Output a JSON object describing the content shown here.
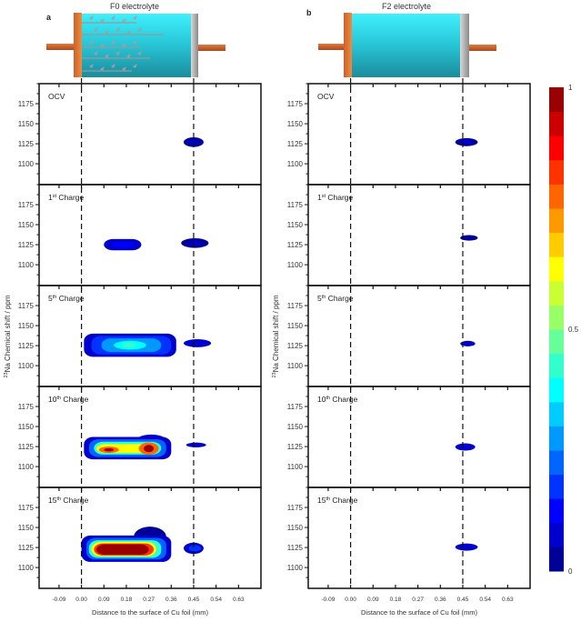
{
  "colorbar": {
    "min": 0,
    "max": 1,
    "tick_labels": [
      "0",
      "0.5",
      "1"
    ],
    "tick_values": [
      0,
      0.5,
      1
    ],
    "levels": 20
  },
  "chart_data": [
    {
      "type": "heatmap",
      "panel_letter": "a",
      "title": "F0 electrolyte",
      "xlabel": "Distance to the surface of Cu foil (mm)",
      "ylabel_sup": "23",
      "ylabel": "Na Chemical shift / ppm",
      "xlim": [
        -0.17,
        0.72
      ],
      "ylim": [
        1074,
        1200
      ],
      "xticks": [
        -0.09,
        0.0,
        0.09,
        0.18,
        0.27,
        0.36,
        0.45,
        0.54,
        0.63
      ],
      "xtick_labels": [
        "-0.09",
        "0.00",
        "0.09",
        "0.18",
        "0.27",
        "0.36",
        "0.45",
        "0.54",
        "0.63"
      ],
      "yticks": [
        1100,
        1125,
        1150,
        1175
      ],
      "ytick_labels": [
        "1100",
        "1125",
        "1150",
        "1175"
      ],
      "reference_lines_x": [
        0.0,
        0.45
      ],
      "dendrites": true,
      "subplots": [
        {
          "num": "OCV",
          "sup": "",
          "word": "",
          "contours": [
            {
              "level": 0.04,
              "x": [
                0.41,
                0.49
              ],
              "y": [
                1121,
                1133
              ]
            },
            {
              "level": 0.08,
              "x": [
                0.43,
                0.47
              ],
              "y": [
                1124,
                1130
              ]
            }
          ]
        },
        {
          "num": "1",
          "sup": "st",
          "word": " Charge",
          "contours": [
            {
              "level": 0.05,
              "x": [
                0.09,
                0.24
              ],
              "y": [
                1118,
                1132
              ]
            },
            {
              "level": 0.1,
              "x": [
                0.12,
                0.21
              ],
              "y": [
                1121,
                1129
              ]
            },
            {
              "level": 0.04,
              "x": [
                0.4,
                0.51
              ],
              "y": [
                1121,
                1133
              ]
            },
            {
              "level": 0.09,
              "x": [
                0.43,
                0.48
              ],
              "y": [
                1124,
                1130
              ]
            }
          ]
        },
        {
          "num": "5",
          "sup": "th",
          "word": " Charge",
          "contours": [
            {
              "level": 0.05,
              "x": [
                0.01,
                0.38
              ],
              "y": [
                1111,
                1140
              ]
            },
            {
              "level": 0.15,
              "x": [
                0.04,
                0.36
              ],
              "y": [
                1114,
                1137
              ]
            },
            {
              "level": 0.25,
              "x": [
                0.08,
                0.32
              ],
              "y": [
                1117,
                1134
              ]
            },
            {
              "level": 0.35,
              "x": [
                0.13,
                0.26
              ],
              "y": [
                1120,
                1131
              ]
            },
            {
              "level": 0.42,
              "x": [
                0.16,
                0.22
              ],
              "y": [
                1122,
                1129
              ]
            },
            {
              "level": 0.05,
              "x": [
                0.41,
                0.52
              ],
              "y": [
                1123,
                1133
              ]
            }
          ]
        },
        {
          "num": "10",
          "sup": "th",
          "word": " Charge",
          "contours": [
            {
              "level": 0.05,
              "x": [
                0.22,
                0.34
              ],
              "y": [
                1125,
                1140
              ]
            },
            {
              "level": 0.05,
              "x": [
                0.01,
                0.36
              ],
              "y": [
                1109,
                1137
              ]
            },
            {
              "level": 0.2,
              "x": [
                0.03,
                0.34
              ],
              "y": [
                1112,
                1134
              ]
            },
            {
              "level": 0.4,
              "x": [
                0.05,
                0.32
              ],
              "y": [
                1115,
                1131
              ]
            },
            {
              "level": 0.6,
              "x": [
                0.06,
                0.31
              ],
              "y": [
                1117,
                1128
              ]
            },
            {
              "level": 0.75,
              "x": [
                0.07,
                0.15
              ],
              "y": [
                1117,
                1125
              ]
            },
            {
              "level": 0.75,
              "x": [
                0.23,
                0.31
              ],
              "y": [
                1115,
                1130
              ]
            },
            {
              "level": 0.95,
              "x": [
                0.09,
                0.13
              ],
              "y": [
                1119,
                1123
              ]
            },
            {
              "level": 0.95,
              "x": [
                0.25,
                0.29
              ],
              "y": [
                1118,
                1127
              ]
            },
            {
              "level": 0.05,
              "x": [
                0.42,
                0.5
              ],
              "y": [
                1124,
                1130
              ]
            }
          ]
        },
        {
          "num": "15",
          "sup": "th",
          "word": " Charge",
          "contours": [
            {
              "level": 0.04,
              "x": [
                0.21,
                0.34
              ],
              "y": [
                1126,
                1151
              ]
            },
            {
              "level": 0.05,
              "x": [
                0.0,
                0.36
              ],
              "y": [
                1107,
                1140
              ]
            },
            {
              "level": 0.2,
              "x": [
                0.02,
                0.34
              ],
              "y": [
                1110,
                1137
              ]
            },
            {
              "level": 0.4,
              "x": [
                0.03,
                0.32
              ],
              "y": [
                1112,
                1134
              ]
            },
            {
              "level": 0.6,
              "x": [
                0.04,
                0.3
              ],
              "y": [
                1114,
                1132
              ]
            },
            {
              "level": 0.8,
              "x": [
                0.05,
                0.29
              ],
              "y": [
                1115,
                1130
              ]
            },
            {
              "level": 0.97,
              "x": [
                0.06,
                0.27
              ],
              "y": [
                1116,
                1129
              ]
            },
            {
              "level": 0.06,
              "x": [
                0.41,
                0.49
              ],
              "y": [
                1117,
                1131
              ]
            },
            {
              "level": 0.15,
              "x": [
                0.43,
                0.48
              ],
              "y": [
                1120,
                1128
              ]
            }
          ]
        }
      ]
    },
    {
      "type": "heatmap",
      "panel_letter": "b",
      "title": "F2 electrolyte",
      "xlabel": "Distance to the surface of Cu foil (mm)",
      "ylabel_sup": "23",
      "ylabel": "Na Chemical shift / ppm",
      "xlim": [
        -0.17,
        0.72
      ],
      "ylim": [
        1074,
        1200
      ],
      "xticks": [
        -0.09,
        0.0,
        0.09,
        0.18,
        0.27,
        0.36,
        0.45,
        0.54,
        0.63
      ],
      "xtick_labels": [
        "-0.09",
        "0.00",
        "0.09",
        "0.18",
        "0.27",
        "0.36",
        "0.45",
        "0.54",
        "0.63"
      ],
      "yticks": [
        1100,
        1125,
        1150,
        1175
      ],
      "ytick_labels": [
        "1100",
        "1125",
        "1150",
        "1175"
      ],
      "reference_lines_x": [
        0.0,
        0.45
      ],
      "dendrites": false,
      "subplots": [
        {
          "num": "OCV",
          "sup": "",
          "word": "",
          "contours": [
            {
              "level": 0.04,
              "x": [
                0.42,
                0.51
              ],
              "y": [
                1122,
                1132
              ]
            },
            {
              "level": 0.08,
              "x": [
                0.44,
                0.49
              ],
              "y": [
                1125,
                1130
              ]
            }
          ]
        },
        {
          "num": "1",
          "sup": "st",
          "word": " Charge",
          "contours": [
            {
              "level": 0.04,
              "x": [
                0.44,
                0.51
              ],
              "y": [
                1130,
                1137
              ]
            }
          ]
        },
        {
          "num": "5",
          "sup": "th",
          "word": " Charge",
          "contours": [
            {
              "level": 0.05,
              "x": [
                0.44,
                0.5
              ],
              "y": [
                1124,
                1131
              ]
            }
          ]
        },
        {
          "num": "10",
          "sup": "th",
          "word": " Charge",
          "contours": [
            {
              "level": 0.05,
              "x": [
                0.42,
                0.5
              ],
              "y": [
                1120,
                1129
              ]
            }
          ]
        },
        {
          "num": "15",
          "sup": "th",
          "word": " Charge",
          "contours": [
            {
              "level": 0.05,
              "x": [
                0.42,
                0.51
              ],
              "y": [
                1121,
                1130
              ]
            }
          ]
        }
      ]
    }
  ]
}
